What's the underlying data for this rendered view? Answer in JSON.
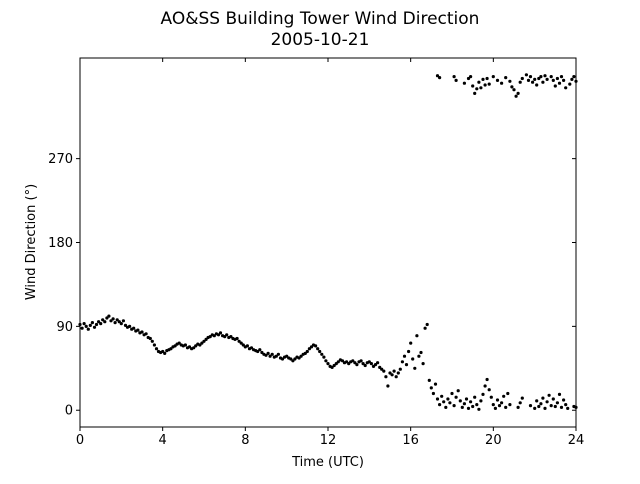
{
  "chart_data": {
    "type": "scatter",
    "title": "AO&SS Building Tower Wind Direction",
    "subtitle": "2005-10-21",
    "xlabel": "Time (UTC)",
    "ylabel": "Wind Direction (°)",
    "xlim": [
      0,
      24
    ],
    "ylim": [
      -18,
      378
    ],
    "xticks": [
      0,
      4,
      8,
      12,
      16,
      20,
      24
    ],
    "yticks": [
      0,
      90,
      180,
      270
    ],
    "grid": false,
    "legend": "none",
    "marker_color": "#000000",
    "series": [
      {
        "points": [
          [
            0.0,
            92
          ],
          [
            0.1,
            88
          ],
          [
            0.2,
            93
          ],
          [
            0.3,
            90
          ],
          [
            0.4,
            87
          ],
          [
            0.5,
            91
          ],
          [
            0.6,
            94
          ],
          [
            0.7,
            89
          ],
          [
            0.8,
            92
          ],
          [
            0.9,
            95
          ],
          [
            1.0,
            93
          ],
          [
            1.1,
            97
          ],
          [
            1.2,
            95
          ],
          [
            1.3,
            99
          ],
          [
            1.4,
            101
          ],
          [
            1.5,
            96
          ],
          [
            1.6,
            98
          ],
          [
            1.7,
            94
          ],
          [
            1.8,
            97
          ],
          [
            1.9,
            95
          ],
          [
            2.0,
            93
          ],
          [
            2.1,
            96
          ],
          [
            2.2,
            91
          ],
          [
            2.3,
            89
          ],
          [
            2.4,
            90
          ],
          [
            2.5,
            87
          ],
          [
            2.6,
            88
          ],
          [
            2.7,
            85
          ],
          [
            2.8,
            86
          ],
          [
            2.9,
            83
          ],
          [
            3.0,
            84
          ],
          [
            3.1,
            81
          ],
          [
            3.2,
            82
          ],
          [
            3.3,
            78
          ],
          [
            3.4,
            77
          ],
          [
            3.5,
            74
          ],
          [
            3.6,
            70
          ],
          [
            3.7,
            66
          ],
          [
            3.8,
            63
          ],
          [
            3.9,
            62
          ],
          [
            4.0,
            63
          ],
          [
            4.1,
            61
          ],
          [
            4.2,
            64
          ],
          [
            4.3,
            65
          ],
          [
            4.4,
            66
          ],
          [
            4.5,
            68
          ],
          [
            4.6,
            69
          ],
          [
            4.7,
            71
          ],
          [
            4.8,
            72
          ],
          [
            4.9,
            70
          ],
          [
            5.0,
            69
          ],
          [
            5.1,
            70
          ],
          [
            5.2,
            67
          ],
          [
            5.3,
            68
          ],
          [
            5.4,
            66
          ],
          [
            5.5,
            67
          ],
          [
            5.6,
            69
          ],
          [
            5.7,
            71
          ],
          [
            5.8,
            70
          ],
          [
            5.9,
            72
          ],
          [
            6.0,
            74
          ],
          [
            6.1,
            76
          ],
          [
            6.2,
            78
          ],
          [
            6.3,
            79
          ],
          [
            6.4,
            81
          ],
          [
            6.5,
            80
          ],
          [
            6.6,
            82
          ],
          [
            6.7,
            81
          ],
          [
            6.8,
            83
          ],
          [
            6.9,
            80
          ],
          [
            7.0,
            79
          ],
          [
            7.1,
            81
          ],
          [
            7.2,
            78
          ],
          [
            7.3,
            79
          ],
          [
            7.4,
            77
          ],
          [
            7.5,
            76
          ],
          [
            7.6,
            77
          ],
          [
            7.7,
            74
          ],
          [
            7.8,
            72
          ],
          [
            7.9,
            70
          ],
          [
            8.0,
            68
          ],
          [
            8.1,
            69
          ],
          [
            8.2,
            66
          ],
          [
            8.3,
            67
          ],
          [
            8.4,
            65
          ],
          [
            8.5,
            64
          ],
          [
            8.6,
            63
          ],
          [
            8.7,
            65
          ],
          [
            8.8,
            62
          ],
          [
            8.9,
            60
          ],
          [
            9.0,
            59
          ],
          [
            9.1,
            61
          ],
          [
            9.2,
            58
          ],
          [
            9.3,
            60
          ],
          [
            9.4,
            57
          ],
          [
            9.5,
            58
          ],
          [
            9.6,
            60
          ],
          [
            9.7,
            56
          ],
          [
            9.8,
            55
          ],
          [
            9.9,
            57
          ],
          [
            10.0,
            58
          ],
          [
            10.1,
            56
          ],
          [
            10.2,
            55
          ],
          [
            10.3,
            53
          ],
          [
            10.4,
            55
          ],
          [
            10.5,
            57
          ],
          [
            10.6,
            56
          ],
          [
            10.7,
            58
          ],
          [
            10.8,
            60
          ],
          [
            10.9,
            61
          ],
          [
            11.0,
            63
          ],
          [
            11.1,
            66
          ],
          [
            11.2,
            68
          ],
          [
            11.3,
            70
          ],
          [
            11.4,
            69
          ],
          [
            11.5,
            66
          ],
          [
            11.6,
            63
          ],
          [
            11.7,
            60
          ],
          [
            11.8,
            57
          ],
          [
            11.9,
            53
          ],
          [
            12.0,
            50
          ],
          [
            12.1,
            47
          ],
          [
            12.2,
            46
          ],
          [
            12.3,
            48
          ],
          [
            12.4,
            50
          ],
          [
            12.5,
            52
          ],
          [
            12.6,
            54
          ],
          [
            12.7,
            53
          ],
          [
            12.8,
            51
          ],
          [
            12.9,
            52
          ],
          [
            13.0,
            50
          ],
          [
            13.1,
            52
          ],
          [
            13.2,
            53
          ],
          [
            13.3,
            51
          ],
          [
            13.4,
            49
          ],
          [
            13.5,
            52
          ],
          [
            13.6,
            53
          ],
          [
            13.7,
            50
          ],
          [
            13.8,
            48
          ],
          [
            13.9,
            51
          ],
          [
            14.0,
            52
          ],
          [
            14.1,
            50
          ],
          [
            14.2,
            47
          ],
          [
            14.3,
            49
          ],
          [
            14.4,
            51
          ],
          [
            14.5,
            46
          ],
          [
            14.6,
            44
          ],
          [
            14.7,
            42
          ],
          [
            14.8,
            36
          ],
          [
            14.9,
            26
          ],
          [
            15.0,
            40
          ],
          [
            15.1,
            38
          ],
          [
            15.2,
            42
          ],
          [
            15.3,
            36
          ],
          [
            15.4,
            40
          ],
          [
            15.5,
            44
          ],
          [
            15.6,
            52
          ],
          [
            15.7,
            58
          ],
          [
            15.8,
            49
          ],
          [
            15.9,
            63
          ],
          [
            16.0,
            72
          ],
          [
            16.1,
            55
          ],
          [
            16.2,
            45
          ],
          [
            16.3,
            80
          ],
          [
            16.4,
            58
          ],
          [
            16.5,
            62
          ],
          [
            16.6,
            50
          ],
          [
            16.7,
            88
          ],
          [
            16.8,
            92
          ],
          [
            16.9,
            32
          ],
          [
            17.0,
            24
          ],
          [
            17.1,
            18
          ],
          [
            17.2,
            28
          ],
          [
            17.3,
            12
          ],
          [
            17.4,
            6
          ],
          [
            17.5,
            15
          ],
          [
            17.6,
            9
          ],
          [
            17.7,
            3
          ],
          [
            17.8,
            12
          ],
          [
            17.9,
            8
          ],
          [
            18.0,
            18
          ],
          [
            18.1,
            5
          ],
          [
            18.2,
            14
          ],
          [
            18.3,
            21
          ],
          [
            18.4,
            10
          ],
          [
            18.5,
            3
          ],
          [
            18.6,
            7
          ],
          [
            18.7,
            12
          ],
          [
            18.8,
            2
          ],
          [
            18.9,
            9
          ],
          [
            19.0,
            4
          ],
          [
            19.1,
            14
          ],
          [
            19.2,
            6
          ],
          [
            19.3,
            1
          ],
          [
            19.4,
            10
          ],
          [
            19.5,
            17
          ],
          [
            19.6,
            26
          ],
          [
            19.7,
            33
          ],
          [
            19.8,
            22
          ],
          [
            19.9,
            14
          ],
          [
            20.0,
            6
          ],
          [
            20.1,
            2
          ],
          [
            20.2,
            11
          ],
          [
            20.3,
            5
          ],
          [
            20.4,
            8
          ],
          [
            20.5,
            15
          ],
          [
            20.6,
            3
          ],
          [
            20.7,
            18
          ],
          [
            20.8,
            6
          ],
          [
            21.2,
            3
          ],
          [
            21.3,
            8
          ],
          [
            21.4,
            13
          ],
          [
            21.8,
            5
          ],
          [
            22.0,
            2
          ],
          [
            22.1,
            10
          ],
          [
            22.2,
            4
          ],
          [
            22.3,
            7
          ],
          [
            22.4,
            13
          ],
          [
            22.5,
            2
          ],
          [
            22.6,
            9
          ],
          [
            22.7,
            16
          ],
          [
            22.8,
            5
          ],
          [
            22.9,
            12
          ],
          [
            23.0,
            4
          ],
          [
            23.1,
            8
          ],
          [
            23.2,
            17
          ],
          [
            23.3,
            3
          ],
          [
            23.4,
            11
          ],
          [
            23.5,
            6
          ],
          [
            23.6,
            2
          ],
          [
            23.9,
            4
          ],
          [
            24.0,
            3
          ],
          [
            17.3,
            359
          ],
          [
            17.4,
            357
          ],
          [
            18.1,
            358
          ],
          [
            18.2,
            354
          ],
          [
            18.6,
            351
          ],
          [
            18.8,
            356
          ],
          [
            18.9,
            358
          ],
          [
            19.0,
            348
          ],
          [
            19.1,
            340
          ],
          [
            19.2,
            345
          ],
          [
            19.3,
            352
          ],
          [
            19.4,
            346
          ],
          [
            19.5,
            355
          ],
          [
            19.6,
            349
          ],
          [
            19.7,
            356
          ],
          [
            19.8,
            350
          ],
          [
            20.0,
            358
          ],
          [
            20.2,
            354
          ],
          [
            20.4,
            351
          ],
          [
            20.6,
            357
          ],
          [
            20.8,
            353
          ],
          [
            20.9,
            347
          ],
          [
            21.0,
            344
          ],
          [
            21.1,
            337
          ],
          [
            21.2,
            340
          ],
          [
            21.3,
            352
          ],
          [
            21.4,
            356
          ],
          [
            21.6,
            360
          ],
          [
            21.7,
            354
          ],
          [
            21.8,
            358
          ],
          [
            21.9,
            352
          ],
          [
            22.0,
            355
          ],
          [
            22.1,
            349
          ],
          [
            22.2,
            356
          ],
          [
            22.3,
            358
          ],
          [
            22.4,
            352
          ],
          [
            22.5,
            359
          ],
          [
            22.6,
            355
          ],
          [
            22.8,
            358
          ],
          [
            22.9,
            354
          ],
          [
            23.0,
            348
          ],
          [
            23.1,
            356
          ],
          [
            23.2,
            351
          ],
          [
            23.3,
            358
          ],
          [
            23.4,
            354
          ],
          [
            23.5,
            346
          ],
          [
            23.7,
            350
          ],
          [
            23.8,
            355
          ],
          [
            23.9,
            358
          ],
          [
            24.0,
            353
          ]
        ]
      }
    ]
  }
}
